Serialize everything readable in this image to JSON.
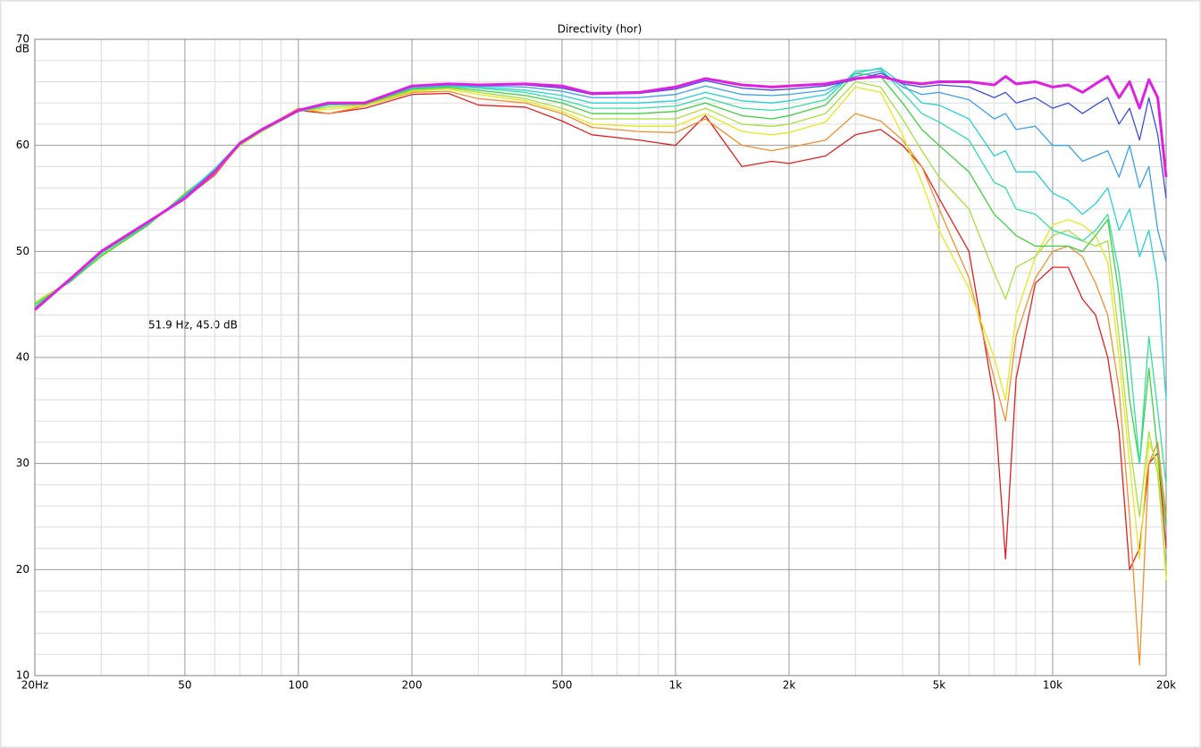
{
  "chart_data": {
    "type": "line",
    "title": "Directivity (hor)",
    "ylabel": "dB",
    "annotation": "51.9 Hz, 45.0 dB",
    "xscale": "log",
    "grid": true,
    "xlim": [
      20,
      20000
    ],
    "ylim": [
      10,
      70
    ],
    "xticks": [
      {
        "value": 20,
        "label": "20Hz"
      },
      50,
      100,
      200,
      500,
      {
        "value": 1000,
        "label": "1k"
      },
      {
        "value": 2000,
        "label": "2k"
      },
      {
        "value": 5000,
        "label": "5k"
      },
      {
        "value": 10000,
        "label": "10k"
      },
      {
        "value": 20000,
        "label": "20k"
      }
    ],
    "xminorticks": [
      30,
      40,
      60,
      70,
      80,
      90,
      300,
      400,
      600,
      700,
      800,
      900,
      3000,
      4000,
      6000,
      7000,
      8000,
      9000
    ],
    "yticks": [
      10,
      20,
      30,
      40,
      50,
      60,
      70
    ],
    "yminorticks": [
      12,
      14,
      16,
      18,
      22,
      24,
      26,
      28,
      32,
      34,
      36,
      38,
      42,
      44,
      46,
      48,
      52,
      54,
      56,
      58,
      62,
      64,
      66,
      68
    ],
    "x": [
      20,
      25,
      30,
      40,
      50,
      60,
      70,
      80,
      100,
      120,
      150,
      200,
      250,
      300,
      400,
      500,
      600,
      800,
      1000,
      1200,
      1500,
      1800,
      2000,
      2500,
      3000,
      3500,
      4000,
      4500,
      5000,
      6000,
      7000,
      7500,
      8000,
      9000,
      10000,
      11000,
      12000,
      13000,
      14000,
      15000,
      16000,
      17000,
      18000,
      19000,
      20000
    ],
    "series": [
      {
        "color": "#e020e0",
        "values": [
          44.5,
          47.5,
          50,
          52.8,
          55,
          57.5,
          60.2,
          61.5,
          63.3,
          64,
          64,
          65.6,
          65.8,
          65.7,
          65.8,
          65.6,
          64.9,
          65,
          65.5,
          66.3,
          65.7,
          65.5,
          65.6,
          65.8,
          66.3,
          66.5,
          66,
          65.8,
          66,
          66,
          65.7,
          66.5,
          65.8,
          66,
          65.5,
          65.7,
          65,
          65.8,
          66.5,
          64.5,
          66,
          63.5,
          66.2,
          64.5,
          57
        ]
      },
      {
        "color": "#3a4fdc",
        "values": [
          44.5,
          47.5,
          50,
          52.8,
          55,
          57.5,
          60.2,
          61.5,
          63.3,
          64,
          64,
          65.6,
          65.8,
          65.7,
          65.7,
          65.4,
          64.8,
          64.9,
          65.3,
          66.1,
          65.4,
          65.2,
          65.3,
          65.6,
          66.2,
          66.8,
          65.8,
          65.5,
          65.7,
          65.5,
          64.5,
          65,
          64,
          64.5,
          63.5,
          64,
          63,
          63.8,
          64.5,
          62,
          63.5,
          60.5,
          64.5,
          61,
          55
        ]
      },
      {
        "color": "#3aa0ec",
        "values": [
          44.6,
          47.4,
          50,
          52.8,
          55.2,
          57.6,
          60.3,
          61.5,
          63.3,
          63.9,
          64,
          65.5,
          65.7,
          65.6,
          65.5,
          65.1,
          64.5,
          64.5,
          64.8,
          65.6,
          64.8,
          64.7,
          64.8,
          65.2,
          66.5,
          67,
          65.5,
          64.8,
          65,
          64.3,
          62.5,
          63,
          61.5,
          61.8,
          60,
          60,
          58.5,
          59,
          59.5,
          57,
          60,
          56,
          58,
          52,
          49
        ]
      },
      {
        "color": "#28d0d8",
        "values": [
          44.6,
          47.4,
          49.9,
          52.7,
          55.2,
          57.8,
          60.3,
          61.5,
          63.3,
          63.9,
          64,
          65.4,
          65.6,
          65.5,
          65.2,
          64.7,
          64,
          64,
          64.2,
          65,
          64.2,
          64,
          64.2,
          64.8,
          66.8,
          67.3,
          65.8,
          64,
          63.8,
          62.5,
          59,
          59.5,
          57.5,
          57.5,
          55.5,
          54.8,
          53.5,
          54.5,
          56,
          52,
          54,
          49.5,
          52,
          47,
          36
        ]
      },
      {
        "color": "#30e0a0",
        "values": [
          44.8,
          47.3,
          49.8,
          52.6,
          55.3,
          57.8,
          60.2,
          61.4,
          63.2,
          63.8,
          64,
          65.4,
          65.6,
          65.4,
          65,
          64.3,
          63.5,
          63.5,
          63.7,
          64.5,
          63.5,
          63.3,
          63.5,
          64.3,
          67,
          67.2,
          65,
          63,
          62.2,
          60.5,
          56.5,
          56,
          54,
          53.5,
          52,
          51.5,
          51,
          52,
          53.5,
          48,
          40,
          30,
          42,
          35,
          28
        ]
      },
      {
        "color": "#40d040",
        "values": [
          45,
          47.2,
          49.6,
          52.5,
          55.4,
          57.7,
          60.1,
          61.4,
          63.2,
          63.8,
          63.9,
          65.3,
          65.5,
          65.2,
          64.7,
          64,
          63,
          63,
          63.2,
          64,
          62.8,
          62.5,
          62.8,
          63.8,
          66.8,
          66.5,
          64,
          61.5,
          60,
          57.5,
          53.5,
          52.5,
          51.5,
          50.5,
          50.5,
          50.5,
          50,
          51.5,
          53,
          46,
          36,
          30,
          39,
          31,
          24
        ]
      },
      {
        "color": "#a8e040",
        "values": [
          45.2,
          47.3,
          49.5,
          52.5,
          55.5,
          57.6,
          60,
          61.3,
          63.2,
          63.6,
          63.8,
          65.2,
          65.4,
          65,
          64.4,
          63.5,
          62.5,
          62.5,
          62.5,
          63.5,
          62,
          61.8,
          62,
          63,
          66,
          65.5,
          62.5,
          59.5,
          57,
          54,
          48,
          45.5,
          48.5,
          49.5,
          51.5,
          52,
          51,
          50.5,
          51,
          42,
          32,
          25,
          33,
          29,
          20
        ]
      },
      {
        "color": "#e8e820",
        "values": [
          45,
          47.4,
          49.8,
          52.6,
          55.2,
          57.4,
          60,
          61.3,
          63.3,
          63.4,
          63.7,
          65.1,
          65.3,
          64.8,
          64.2,
          63.2,
          62,
          61.8,
          61.8,
          63,
          61.3,
          61,
          61.2,
          62.2,
          65.5,
          65,
          61,
          56.5,
          52,
          46.5,
          40,
          36,
          44,
          49.5,
          52.5,
          53,
          52.5,
          51.5,
          49,
          40,
          30,
          21,
          32,
          30,
          19
        ]
      },
      {
        "color": "#f09030",
        "values": [
          44.7,
          47.5,
          50,
          52.8,
          55,
          57.3,
          60,
          61.5,
          63.5,
          63,
          63.7,
          65,
          65.1,
          64.4,
          64,
          63,
          61.7,
          61.3,
          61.2,
          62.5,
          60,
          59.5,
          59.8,
          60.5,
          63,
          62.3,
          60.5,
          58,
          54,
          47.5,
          38,
          34,
          42,
          47.5,
          50,
          50.5,
          49.5,
          47,
          44,
          37,
          25,
          11,
          30,
          32,
          25
        ]
      },
      {
        "color": "#e02020",
        "values": [
          44.5,
          47.5,
          50,
          52.8,
          55,
          57.2,
          60.1,
          61.5,
          63.3,
          63,
          63.5,
          64.8,
          64.9,
          63.8,
          63.6,
          62.3,
          61,
          60.5,
          60,
          62.8,
          58,
          58.5,
          58.3,
          59,
          61,
          61.5,
          60,
          58,
          55,
          50,
          36,
          21,
          38,
          47,
          48.5,
          48.5,
          45.5,
          44,
          40,
          33,
          20,
          22,
          30,
          31,
          22
        ]
      }
    ]
  }
}
